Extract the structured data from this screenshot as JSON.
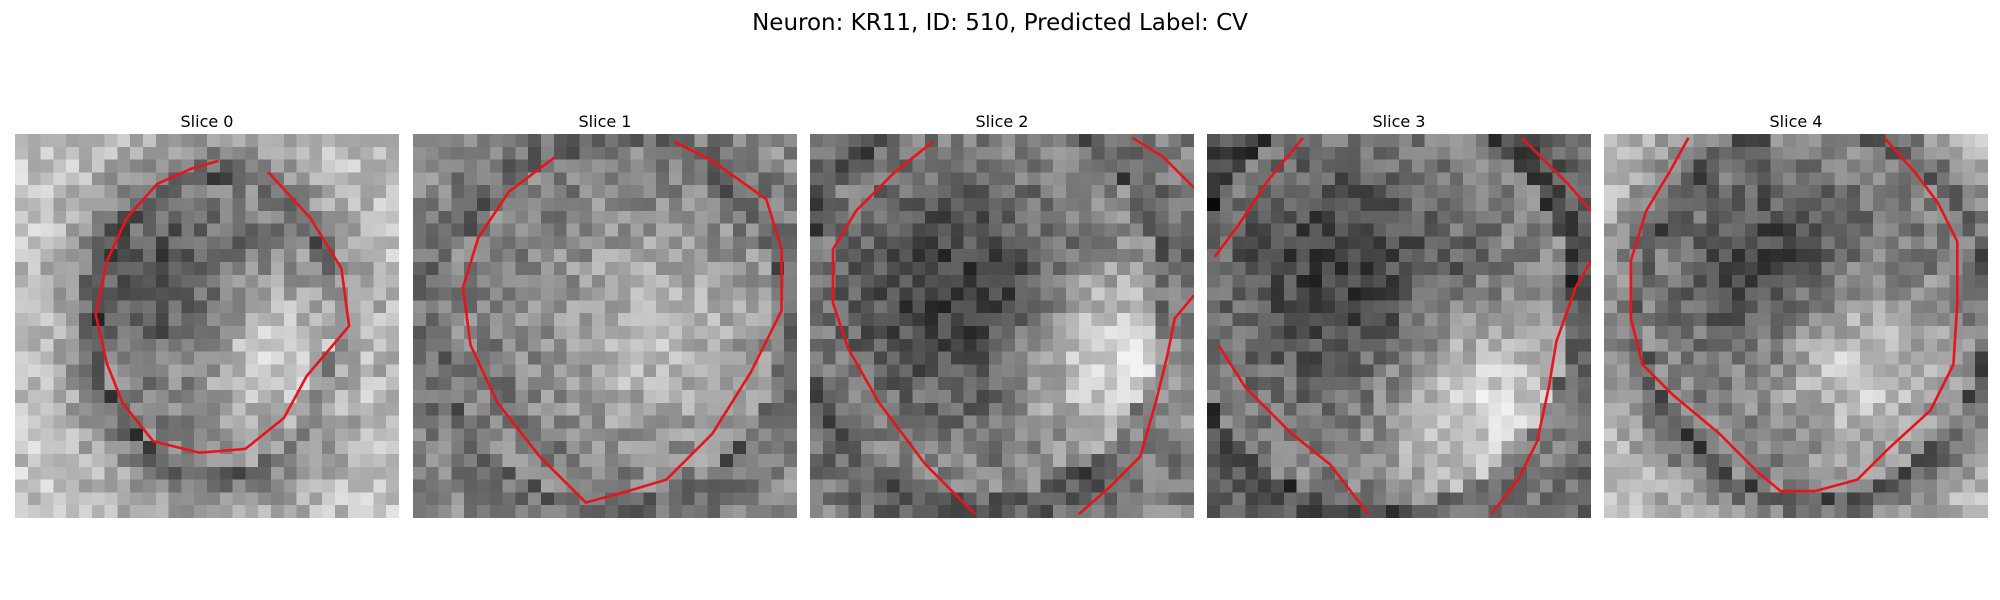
{
  "figure": {
    "title": "Neuron: KR11, ID: 510, Predicted Label: CV"
  },
  "contour_color": "#e8141b",
  "panels": [
    {
      "title": "Slice 0"
    },
    {
      "title": "Slice 1"
    },
    {
      "title": "Slice 2"
    },
    {
      "title": "Slice 3"
    },
    {
      "title": "Slice 4"
    }
  ]
}
